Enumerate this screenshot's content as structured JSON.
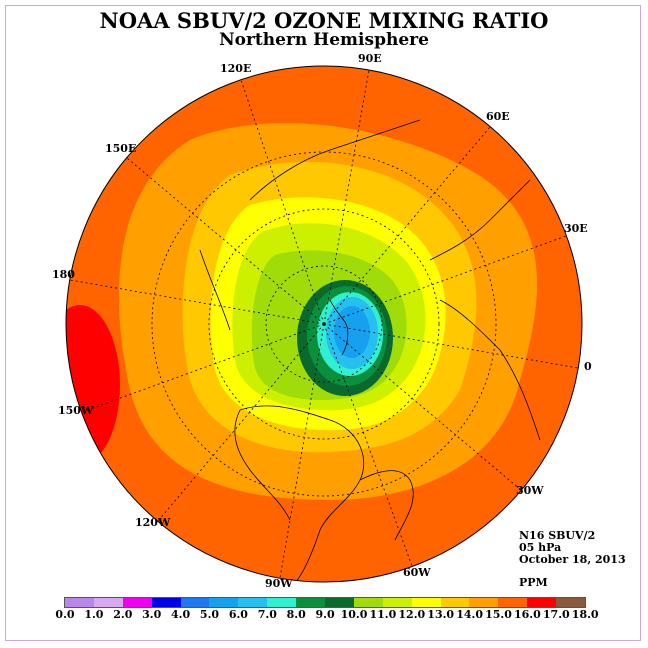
{
  "title": "NOAA SBUV/2 OZONE MIXING RATIO",
  "subtitle": "Northern Hemisphere",
  "longitude_labels": [
    "90E",
    "120E",
    "150E",
    "180",
    "150W",
    "120W",
    "90W",
    "60W",
    "30W",
    "0",
    "30E",
    "60E"
  ],
  "info": {
    "satellite": "N16 SBUV/2",
    "level": "05 hPa",
    "date": "October 18, 2013",
    "units": "PPM"
  },
  "colorbar": {
    "colors": [
      "#b986ec",
      "#d8a8f0",
      "#f000f0",
      "#0000e8",
      "#1e78f0",
      "#16a0f0",
      "#26c0f0",
      "#2ff0d0",
      "#0a8f3c",
      "#0a6a2e",
      "#9fdc0a",
      "#ccf000",
      "#ffff00",
      "#ffc800",
      "#ffa000",
      "#ff6400",
      "#ff0000",
      "#8b5a3c"
    ],
    "labels": [
      "0.0",
      "1.0",
      "2.0",
      "3.0",
      "4.0",
      "5.0",
      "6.0",
      "7.0",
      "8.0",
      "9.0",
      "10.0",
      "11.0",
      "12.0",
      "13.0",
      "14.0",
      "15.0",
      "16.0",
      "17.0",
      "18.0"
    ]
  }
}
